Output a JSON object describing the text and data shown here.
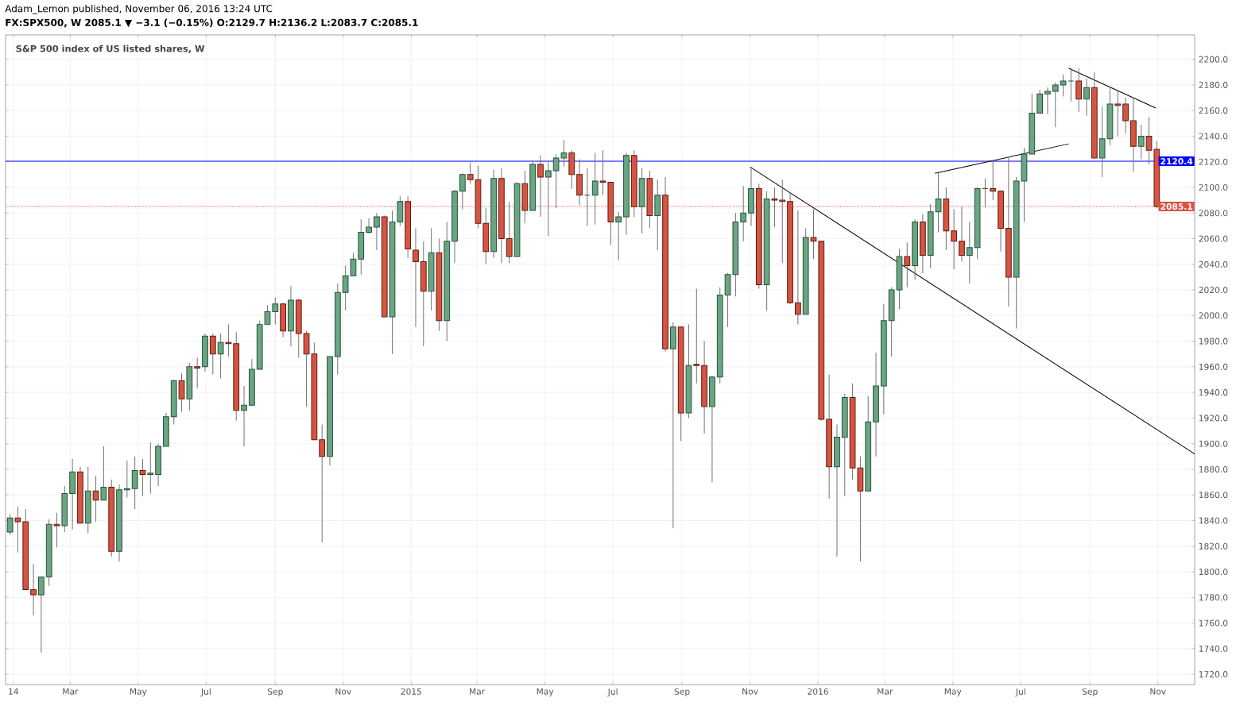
{
  "chart_data": {
    "type": "candlestick",
    "title": "S&P 500 index of US listed shares, W",
    "annotations": [
      "Adam_Lemon published, November 06, 2016 13:24 UTC",
      "FX:SPX500, W 2085.1 ▼ −3.1 (−0.15%) O:2129.7 H:2136.2 L:2083.7 C:2085.1"
    ],
    "x": [
      "2014-01-06",
      "2014-01-13",
      "2014-01-20",
      "2014-01-27",
      "2014-02-03",
      "2014-02-10",
      "2014-02-17",
      "2014-02-24",
      "2014-03-03",
      "2014-03-10",
      "2014-03-17",
      "2014-03-24",
      "2014-03-31",
      "2014-04-07",
      "2014-04-14",
      "2014-04-21",
      "2014-04-28",
      "2014-05-05",
      "2014-05-12",
      "2014-05-19",
      "2014-05-26",
      "2014-06-02",
      "2014-06-09",
      "2014-06-16",
      "2014-06-23",
      "2014-06-30",
      "2014-07-07",
      "2014-07-14",
      "2014-07-21",
      "2014-07-28",
      "2014-08-04",
      "2014-08-11",
      "2014-08-18",
      "2014-08-25",
      "2014-09-01",
      "2014-09-08",
      "2014-09-15",
      "2014-09-22",
      "2014-09-29",
      "2014-10-06",
      "2014-10-13",
      "2014-10-20",
      "2014-10-27",
      "2014-11-03",
      "2014-11-10",
      "2014-11-17",
      "2014-11-24",
      "2014-12-01",
      "2014-12-08",
      "2014-12-15",
      "2014-12-22",
      "2014-12-29",
      "2015-01-05",
      "2015-01-12",
      "2015-01-19",
      "2015-01-26",
      "2015-02-02",
      "2015-02-09",
      "2015-02-16",
      "2015-02-23",
      "2015-03-02",
      "2015-03-09",
      "2015-03-16",
      "2015-03-23",
      "2015-03-30",
      "2015-04-06",
      "2015-04-13",
      "2015-04-20",
      "2015-04-27",
      "2015-05-04",
      "2015-05-11",
      "2015-05-18",
      "2015-05-25",
      "2015-06-01",
      "2015-06-08",
      "2015-06-15",
      "2015-06-22",
      "2015-06-29",
      "2015-07-06",
      "2015-07-13",
      "2015-07-20",
      "2015-07-27",
      "2015-08-03",
      "2015-08-10",
      "2015-08-17",
      "2015-08-24",
      "2015-08-31",
      "2015-09-07",
      "2015-09-14",
      "2015-09-21",
      "2015-09-28",
      "2015-10-05",
      "2015-10-12",
      "2015-10-19",
      "2015-10-26",
      "2015-11-02",
      "2015-11-09",
      "2015-11-16",
      "2015-11-23",
      "2015-11-30",
      "2015-12-07",
      "2015-12-14",
      "2015-12-21",
      "2015-12-28",
      "2016-01-04",
      "2016-01-11",
      "2016-01-18",
      "2016-01-25",
      "2016-02-01",
      "2016-02-08",
      "2016-02-15",
      "2016-02-22",
      "2016-02-29",
      "2016-03-07",
      "2016-03-14",
      "2016-03-21",
      "2016-03-28",
      "2016-04-04",
      "2016-04-11",
      "2016-04-18",
      "2016-04-25",
      "2016-05-02",
      "2016-05-09",
      "2016-05-16",
      "2016-05-23",
      "2016-05-30",
      "2016-06-06",
      "2016-06-13",
      "2016-06-20",
      "2016-06-27",
      "2016-07-04",
      "2016-07-11",
      "2016-07-18",
      "2016-07-25",
      "2016-08-01",
      "2016-08-08",
      "2016-08-15",
      "2016-08-22",
      "2016-08-29",
      "2016-09-05",
      "2016-09-12",
      "2016-09-19",
      "2016-09-26",
      "2016-10-03",
      "2016-10-10",
      "2016-10-17",
      "2016-10-24",
      "2016-10-31"
    ],
    "ohlc": [
      [
        1831,
        1845,
        1829,
        1842
      ],
      [
        1842,
        1851,
        1815,
        1839
      ],
      [
        1839,
        1849,
        1786,
        1786
      ],
      [
        1786,
        1806,
        1766,
        1782
      ],
      [
        1782,
        1796,
        1737,
        1796
      ],
      [
        1796,
        1841,
        1789,
        1837
      ],
      [
        1837,
        1846,
        1819,
        1836
      ],
      [
        1836,
        1867,
        1831,
        1861
      ],
      [
        1861,
        1888,
        1833,
        1878
      ],
      [
        1878,
        1882,
        1838,
        1838
      ],
      [
        1838,
        1882,
        1830,
        1863
      ],
      [
        1863,
        1875,
        1839,
        1856
      ],
      [
        1856,
        1898,
        1856,
        1866
      ],
      [
        1866,
        1872,
        1812,
        1816
      ],
      [
        1816,
        1868,
        1808,
        1864
      ],
      [
        1864,
        1887,
        1858,
        1865
      ],
      [
        1865,
        1890,
        1849,
        1879
      ],
      [
        1879,
        1888,
        1859,
        1876
      ],
      [
        1876,
        1901,
        1861,
        1877
      ],
      [
        1876,
        1900,
        1867,
        1898
      ],
      [
        1898,
        1924,
        1898,
        1921
      ],
      [
        1921,
        1950,
        1915,
        1949
      ],
      [
        1949,
        1955,
        1925,
        1935
      ],
      [
        1935,
        1963,
        1926,
        1960
      ],
      [
        1960,
        1967,
        1943,
        1959
      ],
      [
        1960,
        1986,
        1956,
        1984
      ],
      [
        1984,
        1986,
        1954,
        1970
      ],
      [
        1970,
        1986,
        1951,
        1979
      ],
      [
        1979,
        1993,
        1968,
        1978
      ],
      [
        1978,
        1987,
        1918,
        1926
      ],
      [
        1926,
        1945,
        1898,
        1930
      ],
      [
        1930,
        1966,
        1930,
        1958
      ],
      [
        1958,
        1996,
        1958,
        1993
      ],
      [
        1993,
        2008,
        1993,
        2003
      ],
      [
        2003,
        2014,
        1993,
        2009
      ],
      [
        2009,
        2010,
        1983,
        1988
      ],
      [
        1988,
        2023,
        1976,
        2012
      ],
      [
        2012,
        2013,
        1967,
        1986
      ],
      [
        1986,
        1988,
        1929,
        1970
      ],
      [
        1970,
        1979,
        1903,
        1903
      ],
      [
        1903,
        1915,
        1823,
        1890
      ],
      [
        1890,
        1968,
        1883,
        1968
      ],
      [
        1968,
        2025,
        1954,
        2018
      ],
      [
        2018,
        2039,
        2004,
        2031
      ],
      [
        2031,
        2049,
        2031,
        2044
      ],
      [
        2044,
        2075,
        2032,
        2065
      ],
      [
        2065,
        2076,
        2064,
        2069
      ],
      [
        2069,
        2080,
        2051,
        2077
      ],
      [
        2077,
        2078,
        1999,
        1999
      ],
      [
        1999,
        2082,
        1970,
        2073
      ],
      [
        2073,
        2093,
        2070,
        2089
      ],
      [
        2089,
        2093,
        2045,
        2052
      ],
      [
        2051,
        2068,
        1991,
        2042
      ],
      [
        2042,
        2058,
        1976,
        2019
      ],
      [
        2019,
        2068,
        2004,
        2049
      ],
      [
        2049,
        2060,
        1988,
        1996
      ],
      [
        1996,
        2073,
        1980,
        2058
      ],
      [
        2058,
        2098,
        2041,
        2097
      ],
      [
        2097,
        2111,
        2083,
        2110
      ],
      [
        2110,
        2119,
        2103,
        2106
      ],
      [
        2106,
        2117,
        2068,
        2072
      ],
      [
        2072,
        2084,
        2040,
        2050
      ],
      [
        2050,
        2114,
        2045,
        2107
      ],
      [
        2107,
        2115,
        2041,
        2060
      ],
      [
        2060,
        2089,
        2041,
        2046
      ],
      [
        2046,
        2104,
        2046,
        2103
      ],
      [
        2103,
        2113,
        2072,
        2082
      ],
      [
        2082,
        2121,
        2082,
        2118
      ],
      [
        2118,
        2125,
        2077,
        2108
      ],
      [
        2108,
        2121,
        2062,
        2113
      ],
      [
        2113,
        2126,
        2084,
        2123
      ],
      [
        2123,
        2137,
        2116,
        2127
      ],
      [
        2127,
        2129,
        2099,
        2110
      ],
      [
        2110,
        2122,
        2086,
        2094
      ],
      [
        2094,
        2115,
        2070,
        2094
      ],
      [
        2094,
        2127,
        2071,
        2105
      ],
      [
        2105,
        2129,
        2094,
        2104
      ],
      [
        2104,
        2104,
        2055,
        2073
      ],
      [
        2073,
        2081,
        2043,
        2077
      ],
      [
        2077,
        2127,
        2063,
        2125
      ],
      [
        2125,
        2129,
        2077,
        2085
      ],
      [
        2085,
        2115,
        2064,
        2107
      ],
      [
        2107,
        2113,
        2068,
        2078
      ],
      [
        2078,
        2106,
        2051,
        2094
      ],
      [
        2094,
        2108,
        1972,
        1974
      ],
      [
        1974,
        1995,
        1834,
        1991
      ],
      [
        1991,
        1991,
        1902,
        1924
      ],
      [
        1924,
        1993,
        1920,
        1961
      ],
      [
        1962,
        2021,
        1947,
        1961
      ],
      [
        1961,
        1980,
        1908,
        1929
      ],
      [
        1929,
        1953,
        1870,
        1952
      ],
      [
        1952,
        2022,
        1947,
        2016
      ],
      [
        2016,
        2033,
        1991,
        2032
      ],
      [
        2032,
        2080,
        2015,
        2073
      ],
      [
        2073,
        2101,
        2058,
        2080
      ],
      [
        2080,
        2116,
        2070,
        2099
      ],
      [
        2099,
        2103,
        2021,
        2024
      ],
      [
        2024,
        2097,
        2004,
        2091
      ],
      [
        2091,
        2100,
        2069,
        2090
      ],
      [
        2090,
        2106,
        2041,
        2089
      ],
      [
        2089,
        2096,
        2009,
        2010
      ],
      [
        2010,
        2082,
        1993,
        2001
      ],
      [
        2001,
        2068,
        2001,
        2061
      ],
      [
        2061,
        2083,
        2044,
        2058
      ],
      [
        2058,
        2058,
        1918,
        1919
      ],
      [
        1919,
        1954,
        1857,
        1882
      ],
      [
        1882,
        1915,
        1812,
        1905
      ],
      [
        1905,
        1939,
        1859,
        1936
      ],
      [
        1936,
        1947,
        1872,
        1881
      ],
      [
        1881,
        1890,
        1808,
        1863
      ],
      [
        1863,
        1937,
        1863,
        1917
      ],
      [
        1917,
        1971,
        1890,
        1945
      ],
      [
        1945,
        2009,
        1923,
        1996
      ],
      [
        1996,
        2022,
        1968,
        2020
      ],
      [
        2020,
        2052,
        2005,
        2046
      ],
      [
        2046,
        2057,
        2022,
        2039
      ],
      [
        2039,
        2075,
        2028,
        2073
      ],
      [
        2073,
        2079,
        2033,
        2047
      ],
      [
        2047,
        2087,
        2037,
        2081
      ],
      [
        2081,
        2111,
        2065,
        2091
      ],
      [
        2091,
        2100,
        2051,
        2066
      ],
      [
        2066,
        2083,
        2036,
        2058
      ],
      [
        2058,
        2085,
        2042,
        2047
      ],
      [
        2047,
        2073,
        2025,
        2053
      ],
      [
        2053,
        2100,
        2044,
        2099
      ],
      [
        2099,
        2107,
        2084,
        2099
      ],
      [
        2099,
        2121,
        2090,
        2097
      ],
      [
        2097,
        2098,
        2050,
        2068
      ],
      [
        2068,
        2123,
        2007,
        2030
      ],
      [
        2030,
        2108,
        1990,
        2105
      ],
      [
        2105,
        2131,
        2073,
        2126
      ],
      [
        2126,
        2173,
        2126,
        2158
      ],
      [
        2158,
        2176,
        2158,
        2173
      ],
      [
        2173,
        2178,
        2157,
        2175
      ],
      [
        2175,
        2182,
        2147,
        2180
      ],
      [
        2180,
        2188,
        2171,
        2183
      ],
      [
        2183,
        2193,
        2167,
        2183
      ],
      [
        2183,
        2193,
        2159,
        2169
      ],
      [
        2169,
        2185,
        2156,
        2178
      ],
      [
        2178,
        2190,
        2123,
        2123
      ],
      [
        2123,
        2163,
        2108,
        2138
      ],
      [
        2138,
        2179,
        2133,
        2165
      ],
      [
        2165,
        2175,
        2140,
        2164
      ],
      [
        2165,
        2170,
        2142,
        2152
      ],
      [
        2152,
        2170,
        2112,
        2132
      ],
      [
        2132,
        2149,
        2122,
        2140
      ],
      [
        2140,
        2155,
        2118,
        2129
      ],
      [
        2129.7,
        2136.2,
        2083.7,
        2085.1
      ]
    ],
    "series": [
      {
        "type": "line",
        "color": "#000000",
        "x": [
          "2015-11-01",
          "2016-12-04"
        ],
        "values": [
          2116,
          1892
        ]
      },
      {
        "type": "line",
        "color": "#000000",
        "x": [
          "2016-04-15",
          "2016-08-13"
        ],
        "values": [
          2111,
          2134
        ]
      },
      {
        "type": "line",
        "color": "#000000",
        "x": [
          "2016-08-13",
          "2016-10-30"
        ],
        "values": [
          2193,
          2162
        ]
      }
    ],
    "ref_lines": [
      {
        "axis": "y",
        "value": 2120.4,
        "label": "2120.4",
        "color": "#0000ff"
      },
      {
        "axis": "y",
        "value": 2085.1,
        "label": "2085.1",
        "color": "#d75442",
        "line_style": "dotted"
      }
    ],
    "xlim": [
      "2014-01-02",
      "2016-12-04"
    ],
    "xticks": [
      {
        "value": "2014-01-09",
        "label": "14"
      },
      {
        "value": "2014-03-01",
        "label": "Mar"
      },
      {
        "value": "2014-05-01",
        "label": "May"
      },
      {
        "value": "2014-07-01",
        "label": "Jul"
      },
      {
        "value": "2014-09-01",
        "label": "Sep"
      },
      {
        "value": "2014-11-01",
        "label": "Nov"
      },
      {
        "value": "2015-01-01",
        "label": "2015"
      },
      {
        "value": "2015-03-01",
        "label": "Mar"
      },
      {
        "value": "2015-05-01",
        "label": "May"
      },
      {
        "value": "2015-07-01",
        "label": "Jul"
      },
      {
        "value": "2015-09-01",
        "label": "Sep"
      },
      {
        "value": "2015-11-01",
        "label": "Nov"
      },
      {
        "value": "2016-01-01",
        "label": "2016"
      },
      {
        "value": "2016-03-01",
        "label": "Mar"
      },
      {
        "value": "2016-05-01",
        "label": "May"
      },
      {
        "value": "2016-07-01",
        "label": "Jul"
      },
      {
        "value": "2016-09-01",
        "label": "Sep"
      },
      {
        "value": "2016-11-01",
        "label": "Nov"
      }
    ],
    "ylim": [
      1712,
      2219
    ],
    "yticks": [
      {
        "value": 1720,
        "label": "1720.0"
      },
      {
        "value": 1740,
        "label": "1740.0"
      },
      {
        "value": 1760,
        "label": "1760.0"
      },
      {
        "value": 1780,
        "label": "1780.0"
      },
      {
        "value": 1800,
        "label": "1800.0"
      },
      {
        "value": 1820,
        "label": "1820.0"
      },
      {
        "value": 1840,
        "label": "1840.0"
      },
      {
        "value": 1860,
        "label": "1860.0"
      },
      {
        "value": 1880,
        "label": "1880.0"
      },
      {
        "value": 1900,
        "label": "1900.0"
      },
      {
        "value": 1920,
        "label": "1920.0"
      },
      {
        "value": 1940,
        "label": "1940.0"
      },
      {
        "value": 1960,
        "label": "1960.0"
      },
      {
        "value": 1980,
        "label": "1980.0"
      },
      {
        "value": 2000,
        "label": "2000.0"
      },
      {
        "value": 2020,
        "label": "2020.0"
      },
      {
        "value": 2040,
        "label": "2040.0"
      },
      {
        "value": 2060,
        "label": "2060.0"
      },
      {
        "value": 2080,
        "label": "2080.0"
      },
      {
        "value": 2100,
        "label": "2100.0"
      },
      {
        "value": 2120,
        "label": "2120.0"
      },
      {
        "value": 2140,
        "label": "2140.0"
      },
      {
        "value": 2160,
        "label": "2160.0"
      },
      {
        "value": 2180,
        "label": "2180.0"
      },
      {
        "value": 2200,
        "label": "2200.0"
      }
    ],
    "grid": true
  }
}
